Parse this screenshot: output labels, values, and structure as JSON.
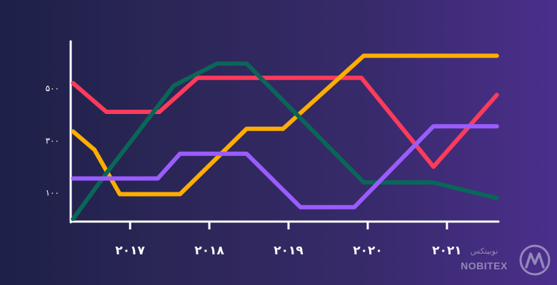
{
  "chart_data": {
    "type": "line",
    "title": "",
    "xlabel": "",
    "ylabel": "",
    "xlim": [
      2016.25,
      2021.65
    ],
    "ylim": [
      -10,
      680
    ],
    "yticks": [
      {
        "value": 100,
        "label": "۱۰۰"
      },
      {
        "value": 300,
        "label": "۳۰۰"
      },
      {
        "value": 500,
        "label": "۵۰۰"
      }
    ],
    "xticks": [
      {
        "value": 2017,
        "label": "۲۰۱۷"
      },
      {
        "value": 2018,
        "label": "۲۰۱۸"
      },
      {
        "value": 2019,
        "label": "۲۰۱۹"
      },
      {
        "value": 2020,
        "label": "۲۰۲۰"
      },
      {
        "value": 2021,
        "label": "۲۰۲۱"
      }
    ],
    "grid": false,
    "legend": "none",
    "series": [
      {
        "color": "#ff3b5c",
        "points": [
          [
            2016.28,
            520
          ],
          [
            2016.7,
            410
          ],
          [
            2017.37,
            410
          ],
          [
            2017.85,
            540
          ],
          [
            2018.93,
            540
          ],
          [
            2019.92,
            540
          ],
          [
            2020.83,
            200
          ],
          [
            2021.63,
            475
          ]
        ]
      },
      {
        "color": "#ffae00",
        "points": [
          [
            2016.28,
            335
          ],
          [
            2016.55,
            265
          ],
          [
            2016.87,
            95
          ],
          [
            2017.63,
            95
          ],
          [
            2018.47,
            345
          ],
          [
            2018.93,
            345
          ],
          [
            2019.95,
            625
          ],
          [
            2021.63,
            625
          ]
        ]
      },
      {
        "color": "#0a6658",
        "points": [
          [
            2016.28,
            0
          ],
          [
            2016.7,
            175
          ],
          [
            2017.55,
            510
          ],
          [
            2018.1,
            595
          ],
          [
            2018.47,
            595
          ],
          [
            2019.95,
            140
          ],
          [
            2020.82,
            140
          ],
          [
            2021.63,
            80
          ]
        ]
      },
      {
        "color": "#9b5cff",
        "points": [
          [
            2016.28,
            155
          ],
          [
            2016.65,
            155
          ],
          [
            2017.35,
            155
          ],
          [
            2017.63,
            250
          ],
          [
            2018.47,
            250
          ],
          [
            2019.15,
            45
          ],
          [
            2019.83,
            45
          ],
          [
            2020.83,
            355
          ],
          [
            2021.63,
            355
          ]
        ]
      }
    ]
  },
  "watermark": {
    "text_fa": "نوبیتکس",
    "text_en": "NOBITEX"
  }
}
